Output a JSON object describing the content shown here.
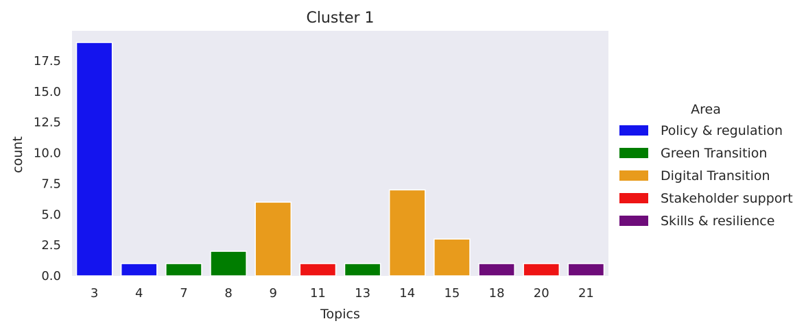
{
  "chart_data": {
    "type": "bar",
    "title": "Cluster 1",
    "xlabel": "Topics",
    "ylabel": "count",
    "ylim": [
      0,
      19.95
    ],
    "yticks": [
      "0.0",
      "2.5",
      "5.0",
      "7.5",
      "10.0",
      "12.5",
      "15.0",
      "17.5"
    ],
    "ytick_values": [
      0,
      2.5,
      5,
      7.5,
      10,
      12.5,
      15,
      17.5
    ],
    "categories": [
      "3",
      "4",
      "7",
      "8",
      "9",
      "11",
      "13",
      "14",
      "15",
      "18",
      "20",
      "21"
    ],
    "values": [
      19,
      1,
      1,
      2,
      6,
      1,
      1,
      7,
      3,
      1,
      1,
      1
    ],
    "bar_areas": [
      "Policy & regulation",
      "Policy & regulation",
      "Green Transition",
      "Green Transition",
      "Digital Transition",
      "Stakeholder support",
      "Green Transition",
      "Digital Transition",
      "Digital Transition",
      "Skills & resilience",
      "Stakeholder support",
      "Skills & resilience"
    ],
    "grid": false,
    "legend": {
      "title": "Area",
      "placement": "right",
      "entries": [
        {
          "label": "Policy & regulation",
          "color": "#1414ee"
        },
        {
          "label": "Green Transition",
          "color": "#007d00"
        },
        {
          "label": "Digital Transition",
          "color": "#e89b1c"
        },
        {
          "label": "Stakeholder support",
          "color": "#ee1414"
        },
        {
          "label": "Skills & resilience",
          "color": "#6e0c7a"
        }
      ]
    },
    "background_color": "#eaeaf2"
  }
}
